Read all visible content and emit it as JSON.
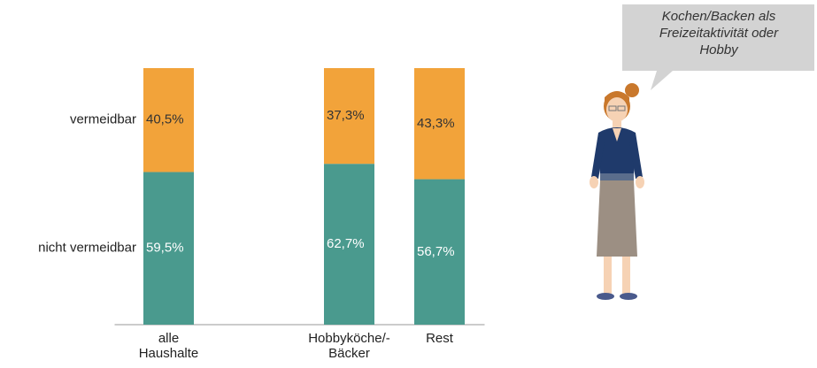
{
  "chart_data": {
    "type": "stacked_bar",
    "categories": [
      "alle\nHaushalte",
      null,
      "Hobbyköche/-\nBäcker",
      "Rest"
    ],
    "series": [
      {
        "name": "nicht vermeidbar",
        "color": "#4a9a8e",
        "values": [
          59.5,
          null,
          62.7,
          56.7
        ],
        "value_labels": [
          "59,5%",
          null,
          "62,7%",
          "56,7%"
        ]
      },
      {
        "name": "vermeidbar",
        "color": "#f2a33a",
        "values": [
          40.5,
          null,
          37.3,
          43.3
        ],
        "value_labels": [
          "40,5%",
          null,
          "37,3%",
          "43,3%"
        ]
      }
    ],
    "ylim": [
      0,
      100
    ],
    "annotation": "Kochen/Backen als\nFreizeitaktivität oder\nHobby"
  }
}
